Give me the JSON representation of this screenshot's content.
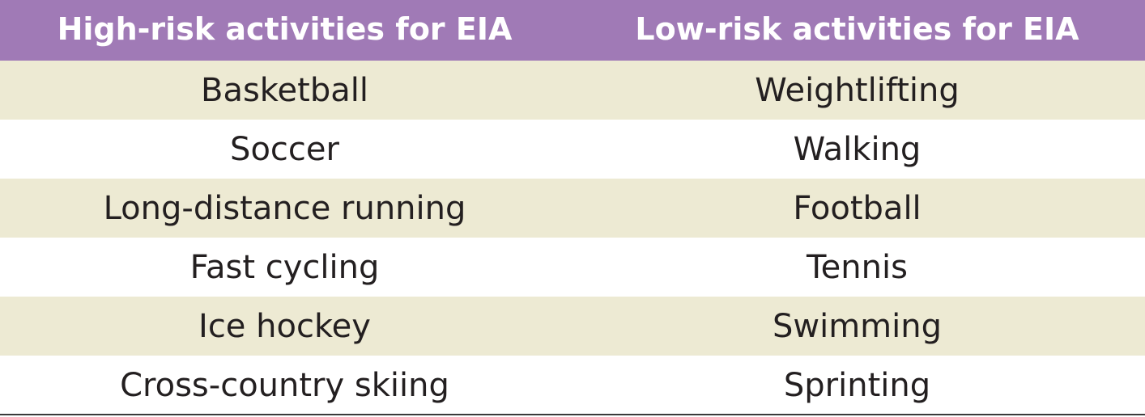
{
  "table": {
    "headers": [
      "High-risk activities for EIA",
      "Low-risk activities for EIA"
    ],
    "rows": [
      [
        "Basketball",
        "Weightlifting"
      ],
      [
        "Soccer",
        "Walking"
      ],
      [
        "Long-distance running",
        "Football"
      ],
      [
        "Fast cycling",
        "Tennis"
      ],
      [
        "Ice hockey",
        "Swimming"
      ],
      [
        "Cross-country skiing",
        "Sprinting"
      ]
    ]
  },
  "colors": {
    "header_background": "#a07ab6",
    "header_text": "#ffffff",
    "shaded_row": "#edead3",
    "plain_row": "#ffffff",
    "body_text": "#231f20",
    "bottom_rule": "#3a3a3a"
  }
}
